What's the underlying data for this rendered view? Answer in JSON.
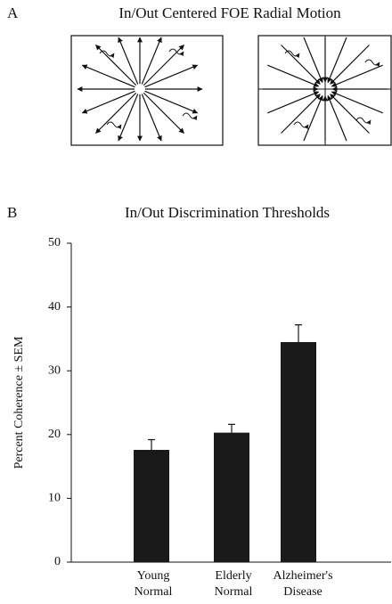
{
  "panel_a": {
    "label": "A",
    "title": "In/Out Centered FOE Radial Motion"
  },
  "chart_data": {
    "type": "bar",
    "panel_label": "B",
    "title": "In/Out Discrimination Thresholds",
    "y_label": "Percent Coherence ± SEM",
    "categories": [
      [
        "Young",
        "Normal"
      ],
      [
        "Elderly",
        "Normal"
      ],
      [
        "Alzheimer's",
        "Disease"
      ]
    ],
    "values": [
      17.6,
      20.3,
      34.5
    ],
    "errors": [
      1.6,
      1.3,
      2.7
    ],
    "color": "#1a1a1a",
    "ylim": [
      0,
      50
    ],
    "yticks": [
      0,
      10,
      20,
      30,
      40,
      50
    ],
    "grid": false
  }
}
